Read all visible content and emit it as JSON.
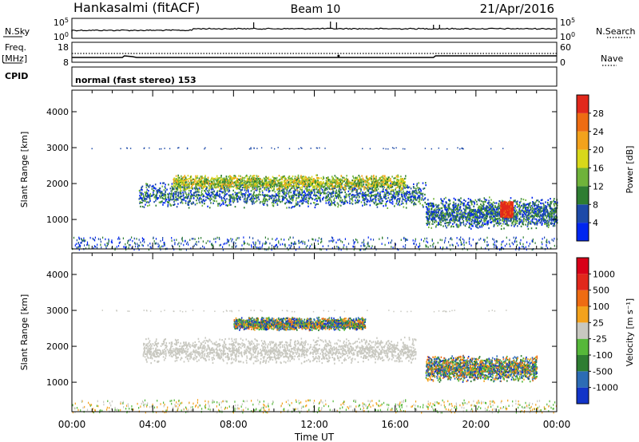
{
  "header": {
    "station": "Hankasalmi (fitACF)",
    "beam": "Beam 10",
    "date": "21/Apr/2016"
  },
  "top_panels": {
    "nsky_label": "N.Sky",
    "nsky_tick_top": "10^5",
    "nsky_tick_bottom": "10^0",
    "nsearch_label": "N.Search",
    "freq_label_1": "Freq.",
    "freq_label_2": "[MHz]",
    "freq_tick_top": "18",
    "freq_tick_bottom": "8",
    "nave_label": "Nave",
    "nave_tick_top": "60",
    "nave_tick_bottom": "0",
    "cpid_label": "CPID",
    "cpid_text": "normal (fast stereo) 153"
  },
  "chart_data": [
    {
      "type": "heatmap",
      "title": "",
      "xlabel": "Time UT",
      "ylabel": "Slant Range [km]",
      "xlim_hours": [
        0,
        24
      ],
      "ylim": [
        180,
        4600
      ],
      "x_tick_labels": [
        "00:00",
        "04:00",
        "08:00",
        "12:00",
        "16:00",
        "20:00",
        "00:00"
      ],
      "y_ticks": [
        1000,
        2000,
        3000,
        4000
      ],
      "colorbar": {
        "label": "Power [dB]",
        "ticks": [
          "4",
          "8",
          "12",
          "16",
          "20",
          "24",
          "28"
        ],
        "colors": [
          "#0026f0",
          "#1d4aa8",
          "#2e7d32",
          "#6fb33a",
          "#d8d81a",
          "#f3a21c",
          "#ee6c12",
          "#e1281b"
        ]
      },
      "echo_regions": [
        {
          "t0": 3.3,
          "t1": 17.5,
          "range_center": 1700,
          "range_width": 500,
          "level": "weak-to-medium"
        },
        {
          "t0": 5.0,
          "t1": 16.5,
          "range_center": 2050,
          "range_width": 300,
          "level": "medium"
        },
        {
          "t0": 17.5,
          "t1": 24.0,
          "range_center": 1200,
          "range_width": 600,
          "level": "strong patches"
        },
        {
          "t0": 21.2,
          "t1": 21.8,
          "range_center": 1300,
          "range_width": 300,
          "level": "max ~28 dB"
        }
      ]
    },
    {
      "type": "heatmap",
      "title": "",
      "xlabel": "Time UT",
      "ylabel": "Slant Range [km]",
      "xlim_hours": [
        0,
        24
      ],
      "ylim": [
        180,
        4600
      ],
      "x_tick_labels": [
        "00:00",
        "04:00",
        "08:00",
        "12:00",
        "16:00",
        "20:00",
        "00:00"
      ],
      "y_ticks": [
        1000,
        2000,
        3000,
        4000
      ],
      "colorbar": {
        "label": "Velocity [m s⁻¹]",
        "ticks": [
          "1000",
          "500",
          "100",
          "25",
          "-25",
          "-100",
          "-500",
          "-1000"
        ],
        "colors": [
          "#1234c8",
          "#2c6cb5",
          "#2e7d32",
          "#56b83a",
          "#c8c8c0",
          "#f3a21c",
          "#ee6c12",
          "#e1281b",
          "#d80018"
        ]
      },
      "echo_regions": [
        {
          "t0": 3.5,
          "t1": 17.0,
          "range_center": 1900,
          "range_width": 500,
          "level": "ground scatter (grey)"
        },
        {
          "t0": 8.0,
          "t1": 14.5,
          "range_center": 2650,
          "range_width": 250,
          "level": "orange / green"
        },
        {
          "t0": 17.5,
          "t1": 23.0,
          "range_center": 1400,
          "range_width": 500,
          "level": "mixed blue / orange"
        }
      ]
    }
  ]
}
